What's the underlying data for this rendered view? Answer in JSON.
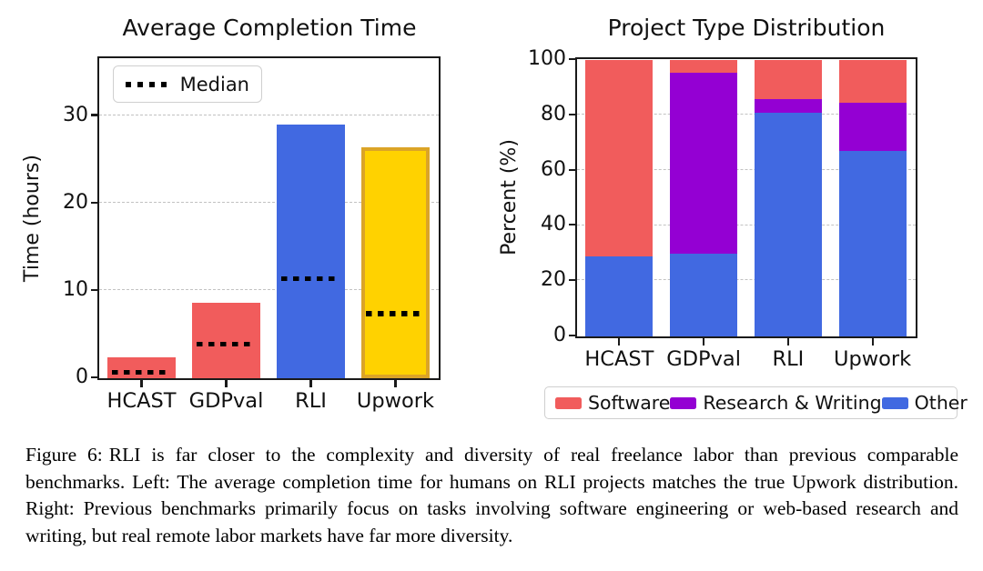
{
  "figure": {
    "caption_label": "Figure 6:",
    "caption_text": "RLI is far closer to the complexity and diversity of real freelance labor than previous comparable benchmarks. Left: The average completion time for humans on RLI projects matches the true Upwork distribution. Right: Previous benchmarks primarily focus on tasks involving software engineering or web-based research and writing, but real remote labor markets have far more diversity."
  },
  "chart_data": [
    {
      "type": "bar",
      "title": "Average Completion Time",
      "xlabel": "",
      "ylabel": "Time (hours)",
      "categories": [
        "HCAST",
        "GDPval",
        "RLI",
        "Upwork"
      ],
      "values": [
        2.4,
        8.6,
        29,
        26.4
      ],
      "median_values": [
        0.7,
        3.9,
        11.4,
        7.4
      ],
      "bar_colors": [
        "#F15C5C",
        "#F15C5C",
        "#4169E1",
        "#FFD200"
      ],
      "bar_edge_colors": [
        "none",
        "none",
        "none",
        "#DBA427"
      ],
      "yticks": [
        0,
        10,
        20,
        30
      ],
      "ylim": [
        0,
        36.5
      ],
      "grid": true,
      "legend": [
        {
          "label": "Median",
          "style": "dotted-line",
          "color": "#000000"
        }
      ],
      "legend_position": "upper-left"
    },
    {
      "type": "stacked-bar",
      "title": "Project Type Distribution",
      "xlabel": "",
      "ylabel": "Percent (%)",
      "categories": [
        "HCAST",
        "GDPval",
        "RLI",
        "Upwork"
      ],
      "series": [
        {
          "name": "Other",
          "color": "#4169E1",
          "values": [
            29,
            30,
            81,
            67
          ]
        },
        {
          "name": "Research & Writing",
          "color": "#9400D3",
          "values": [
            0,
            65.5,
            5,
            17.5
          ]
        },
        {
          "name": "Software",
          "color": "#F15C5C",
          "values": [
            71,
            4.5,
            14,
            15.5
          ]
        }
      ],
      "yticks": [
        0,
        20,
        40,
        60,
        80,
        100
      ],
      "ylim": [
        0,
        100
      ],
      "grid": true,
      "legend": [
        {
          "label": "Software",
          "color": "#F15C5C"
        },
        {
          "label": "Research & Writing",
          "color": "#9400D3"
        },
        {
          "label": "Other",
          "color": "#4169E1"
        }
      ],
      "legend_position": "below"
    }
  ]
}
